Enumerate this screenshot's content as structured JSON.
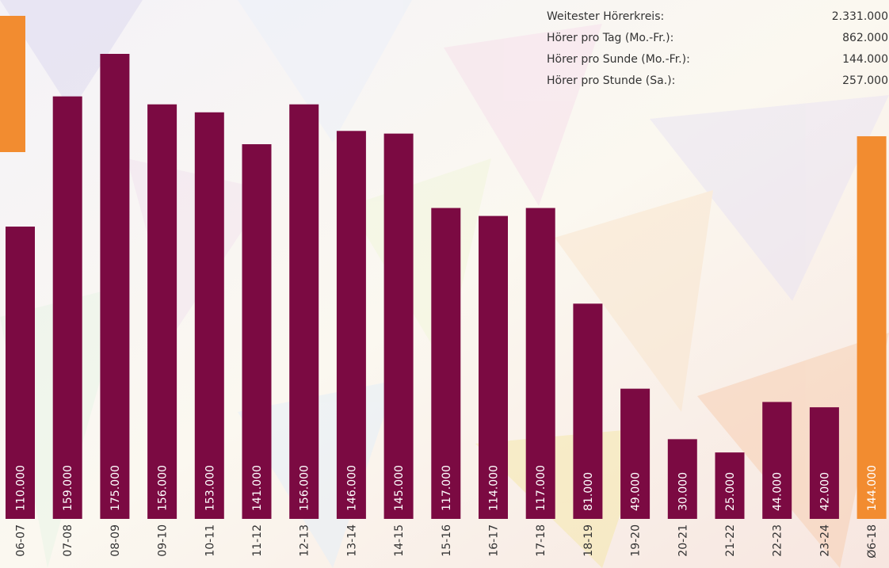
{
  "chart_data": {
    "type": "bar",
    "categories": [
      "06-07",
      "07-08",
      "08-09",
      "09-10",
      "10-11",
      "11-12",
      "12-13",
      "13-14",
      "14-15",
      "15-16",
      "16-17",
      "17-18",
      "18-19",
      "19-20",
      "20-21",
      "21-22",
      "22-23",
      "23-24",
      "Ø6-18"
    ],
    "values": [
      110000,
      159000,
      175000,
      156000,
      153000,
      141000,
      156000,
      146000,
      145000,
      117000,
      114000,
      117000,
      81000,
      49000,
      30000,
      25000,
      44000,
      42000,
      144000
    ],
    "value_labels": [
      "110.000",
      "159.000",
      "175.000",
      "156.000",
      "153.000",
      "141.000",
      "156.000",
      "146.000",
      "145.000",
      "117.000",
      "114.000",
      "117.000",
      "81.000",
      "49.000",
      "30.000",
      "25.000",
      "44.000",
      "42.000",
      "144.000"
    ],
    "colors": [
      "#7b0a42",
      "#7b0a42",
      "#7b0a42",
      "#7b0a42",
      "#7b0a42",
      "#7b0a42",
      "#7b0a42",
      "#7b0a42",
      "#7b0a42",
      "#7b0a42",
      "#7b0a42",
      "#7b0a42",
      "#7b0a42",
      "#7b0a42",
      "#7b0a42",
      "#7b0a42",
      "#7b0a42",
      "#7b0a42",
      "#f28c30"
    ]
  },
  "stats": [
    {
      "label": "Weitester Hörerkreis:",
      "value": "2.331.000"
    },
    {
      "label": "Hörer pro Tag (Mo.-Fr.):",
      "value": "862.000"
    },
    {
      "label": "Hörer pro Sunde (Mo.-Fr.):",
      "value": "144.000"
    },
    {
      "label": "Hörer pro Stunde (Sa.):",
      "value": "257.000"
    }
  ]
}
